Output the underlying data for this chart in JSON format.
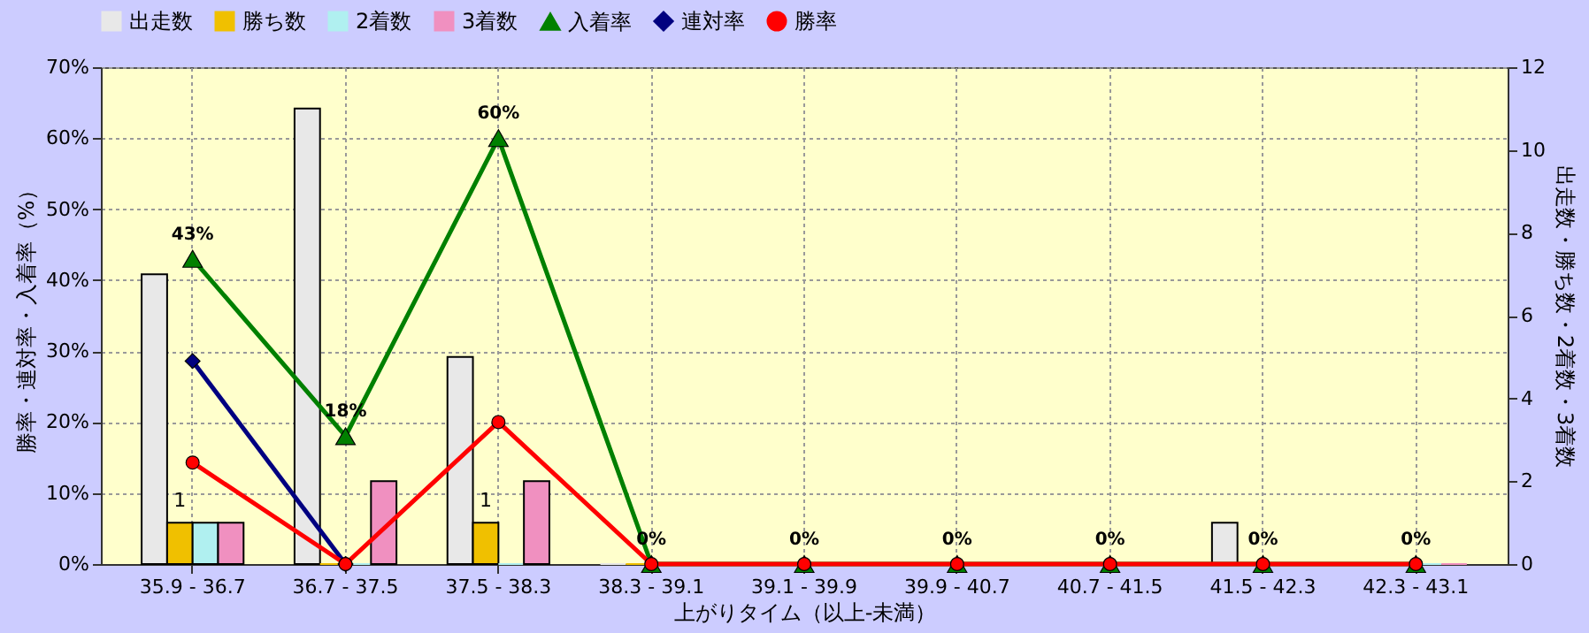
{
  "chart_data": {
    "type": "bar",
    "xlabel": "上がりタイム（以上-未満）",
    "ylabel": "勝率・連対率・入着率（%）",
    "y2label": "出走数・勝ち数・2着数・3着数",
    "categories": [
      "35.9 - 36.7",
      "36.7 - 37.5",
      "37.5 - 38.3",
      "38.3 - 39.1",
      "39.1 - 39.9",
      "39.9 - 40.7",
      "40.7 - 41.5",
      "41.5 - 42.3",
      "42.3 - 43.1"
    ],
    "series": [
      {
        "name": "出走数",
        "type": "bar",
        "axis": "y2",
        "color": "#e8e8e8",
        "values": [
          7,
          11,
          5,
          0,
          0,
          0,
          0,
          1,
          0
        ]
      },
      {
        "name": "勝ち数",
        "type": "bar",
        "axis": "y2",
        "color": "#f0c000",
        "values": [
          1,
          0,
          1,
          0,
          0,
          0,
          0,
          0,
          0
        ],
        "value_labels": [
          "1",
          null,
          "1",
          null,
          null,
          null,
          null,
          null,
          null
        ]
      },
      {
        "name": "2着数",
        "type": "bar",
        "axis": "y2",
        "color": "#b0f0f0",
        "values": [
          1,
          0,
          0,
          0,
          0,
          0,
          0,
          0,
          0
        ]
      },
      {
        "name": "3着数",
        "type": "bar",
        "axis": "y2",
        "color": "#f090c0",
        "values": [
          1,
          2,
          2,
          0,
          0,
          0,
          0,
          0,
          0
        ]
      },
      {
        "name": "入着率",
        "type": "line",
        "marker": "triangle",
        "color": "#008000",
        "values": [
          43,
          18,
          60,
          0,
          0,
          0,
          0,
          0,
          0
        ],
        "value_labels": [
          "43%",
          "18%",
          "60%",
          "0%",
          "0%",
          "0%",
          "0%",
          "0%",
          "0%"
        ]
      },
      {
        "name": "連対率",
        "type": "line",
        "marker": "diamond",
        "color": "#000080",
        "values": [
          28.6,
          0,
          null,
          null,
          null,
          null,
          null,
          null,
          null
        ]
      },
      {
        "name": "勝率",
        "type": "line",
        "marker": "circle",
        "color": "#ff0000",
        "values": [
          14.3,
          0,
          20,
          0,
          0,
          0,
          0,
          0,
          0
        ]
      }
    ],
    "ylim": [
      0,
      70
    ],
    "yticks": [
      {
        "value": 0,
        "label": "0%"
      },
      {
        "value": 10,
        "label": "10%"
      },
      {
        "value": 20,
        "label": "20%"
      },
      {
        "value": 30,
        "label": "30%"
      },
      {
        "value": 40,
        "label": "40%"
      },
      {
        "value": 50,
        "label": "50%"
      },
      {
        "value": 60,
        "label": "60%"
      },
      {
        "value": 70,
        "label": "70%"
      }
    ],
    "y2lim": [
      0,
      12
    ],
    "y2ticks": [
      0,
      2,
      4,
      6,
      8,
      10,
      12
    ],
    "grid": true,
    "legend": "top"
  }
}
